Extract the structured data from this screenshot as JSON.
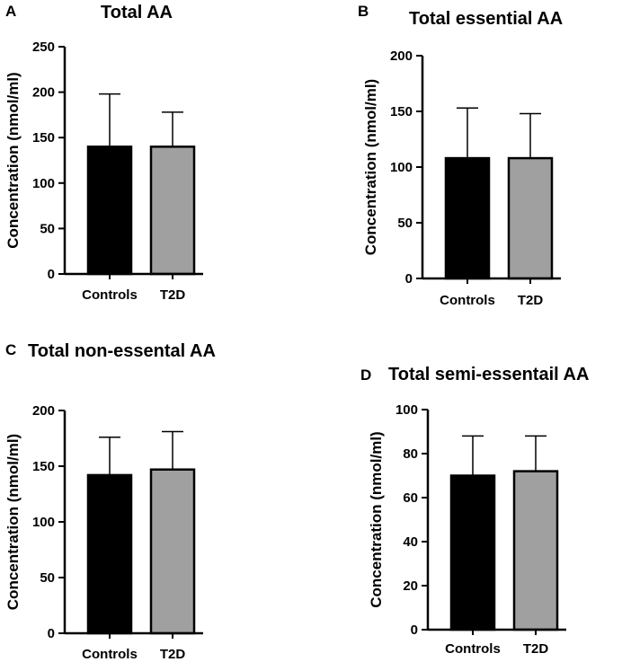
{
  "chart_data": [
    {
      "panel": "A",
      "type": "bar",
      "title": "Total AA",
      "ylabel": "Concentration (nmol/ml)",
      "xlabel": "",
      "categories": [
        "Controls",
        "T2D"
      ],
      "values": [
        140,
        140
      ],
      "error_upper": [
        198,
        178
      ],
      "ylim": [
        0,
        250
      ],
      "yticks": [
        0,
        50,
        100,
        150,
        200,
        250
      ],
      "colors": [
        "#000000",
        "#a0a0a0"
      ]
    },
    {
      "panel": "B",
      "type": "bar",
      "title": "Total essential AA",
      "ylabel": "Concentration (nmol/ml)",
      "xlabel": "",
      "categories": [
        "Controls",
        "T2D"
      ],
      "values": [
        108,
        108
      ],
      "error_upper": [
        153,
        148
      ],
      "ylim": [
        0,
        200
      ],
      "yticks": [
        0,
        50,
        100,
        150,
        200
      ],
      "colors": [
        "#000000",
        "#a0a0a0"
      ]
    },
    {
      "panel": "C",
      "type": "bar",
      "title": "Total non-essental AA",
      "ylabel": "Concentration (nmol/ml)",
      "xlabel": "",
      "categories": [
        "Controls",
        "T2D"
      ],
      "values": [
        142,
        147
      ],
      "error_upper": [
        176,
        181
      ],
      "ylim": [
        0,
        200
      ],
      "yticks": [
        0,
        50,
        100,
        150,
        200
      ],
      "colors": [
        "#000000",
        "#a0a0a0"
      ]
    },
    {
      "panel": "D",
      "type": "bar",
      "title": "Total semi-essentail AA",
      "ylabel": "Concentration (nmol/ml)",
      "xlabel": "",
      "categories": [
        "Controls",
        "T2D"
      ],
      "values": [
        70,
        72
      ],
      "error_upper": [
        88,
        88
      ],
      "ylim": [
        0,
        100
      ],
      "yticks": [
        0,
        20,
        40,
        60,
        80,
        100
      ],
      "colors": [
        "#000000",
        "#a0a0a0"
      ]
    }
  ]
}
